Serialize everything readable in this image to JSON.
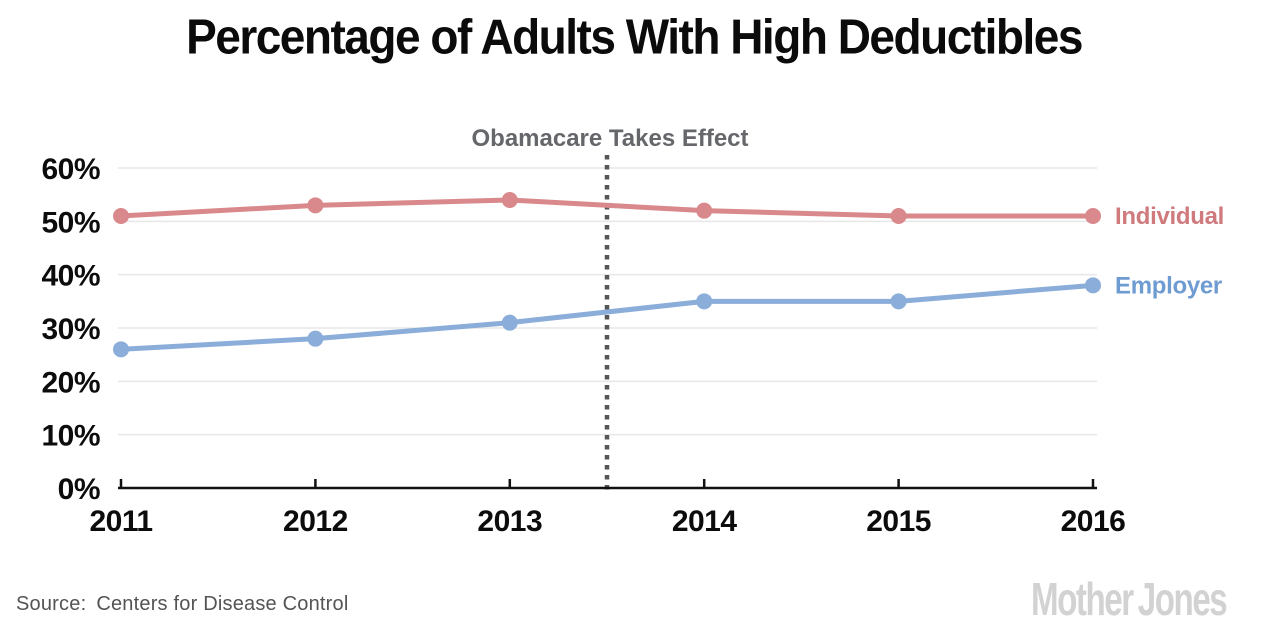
{
  "title": "Percentage of Adults With High Deductibles",
  "source": {
    "label": "Source:",
    "text": "Centers for Disease Control"
  },
  "logo": {
    "word1": "Mother",
    "word2": "Jones"
  },
  "colors": {
    "individual_line": "#d9898b",
    "individual_label": "#cf7b7e",
    "employer_line": "#8badd9",
    "employer_label": "#6e9bd1",
    "grid": "#e7e7e7",
    "axis": "#111111",
    "annotation_text": "#65676b",
    "dotted_line": "#565656",
    "source_text": "#545454",
    "logo_gray": "#d2d2d2",
    "title_text": "#0b0b0b"
  },
  "chart_data": {
    "type": "line",
    "title": "Percentage of Adults With High Deductibles",
    "x": [
      2011,
      2012,
      2013,
      2014,
      2015,
      2016
    ],
    "series": [
      {
        "name": "Individual",
        "values": [
          51,
          53,
          54,
          52,
          51,
          51
        ],
        "color": "#d9898b",
        "label_color": "#cf7b7e"
      },
      {
        "name": "Employer",
        "values": [
          26,
          28,
          31,
          35,
          35,
          38
        ],
        "color": "#8badd9",
        "label_color": "#6e9bd1"
      }
    ],
    "xlabel": "",
    "ylabel": "",
    "ylim": [
      0,
      60
    ],
    "ytick_step": 10,
    "ytick_suffix": "%",
    "grid": "horizontal",
    "legend_position": "right-of-line-ends",
    "annotation": {
      "text": "Obamacare Takes Effect",
      "x": 2013.5
    }
  }
}
